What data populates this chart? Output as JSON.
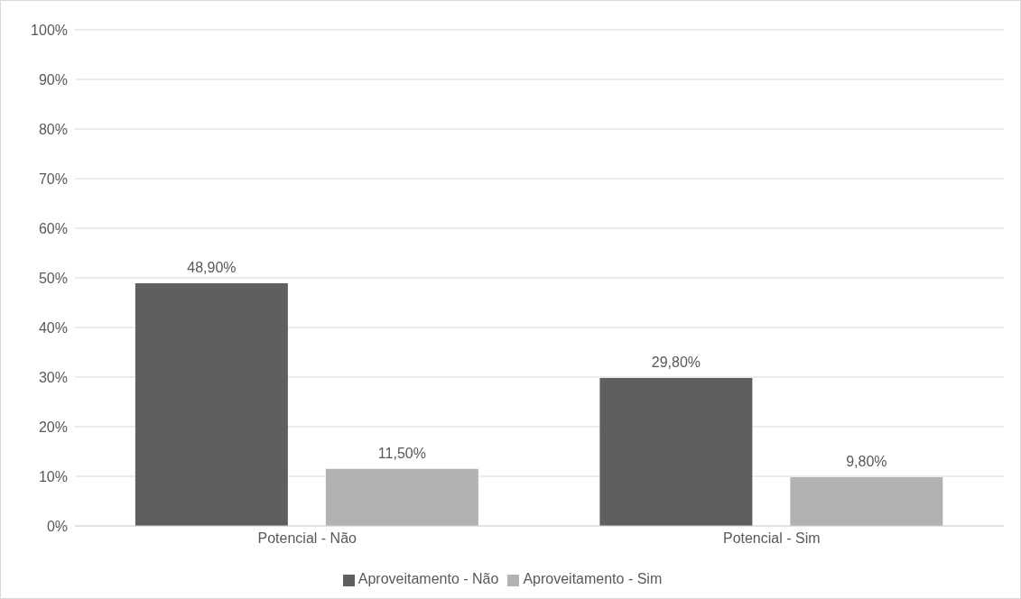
{
  "chart_data": {
    "type": "bar",
    "categories": [
      "Potencial - Não",
      "Potencial - Sim"
    ],
    "series": [
      {
        "name": "Aproveitamento - Não",
        "color": "#5f5f5f",
        "values": [
          48.9,
          29.8
        ],
        "value_labels": [
          "48,90%",
          "29,80%"
        ]
      },
      {
        "name": "Aproveitamento - Sim",
        "color": "#b2b2b2",
        "values": [
          11.5,
          9.8
        ],
        "value_labels": [
          "11,50%",
          "9,80%"
        ]
      }
    ],
    "ylim": [
      0,
      100
    ],
    "yticks": [
      {
        "value": 0,
        "label": "0%"
      },
      {
        "value": 10,
        "label": "10%"
      },
      {
        "value": 20,
        "label": "20%"
      },
      {
        "value": 30,
        "label": "30%"
      },
      {
        "value": 40,
        "label": "40%"
      },
      {
        "value": 50,
        "label": "50%"
      },
      {
        "value": 60,
        "label": "60%"
      },
      {
        "value": 70,
        "label": "70%"
      },
      {
        "value": 80,
        "label": "80%"
      },
      {
        "value": 90,
        "label": "90%"
      },
      {
        "value": 100,
        "label": "100%"
      }
    ],
    "grid": "y",
    "legend": "bottom"
  }
}
